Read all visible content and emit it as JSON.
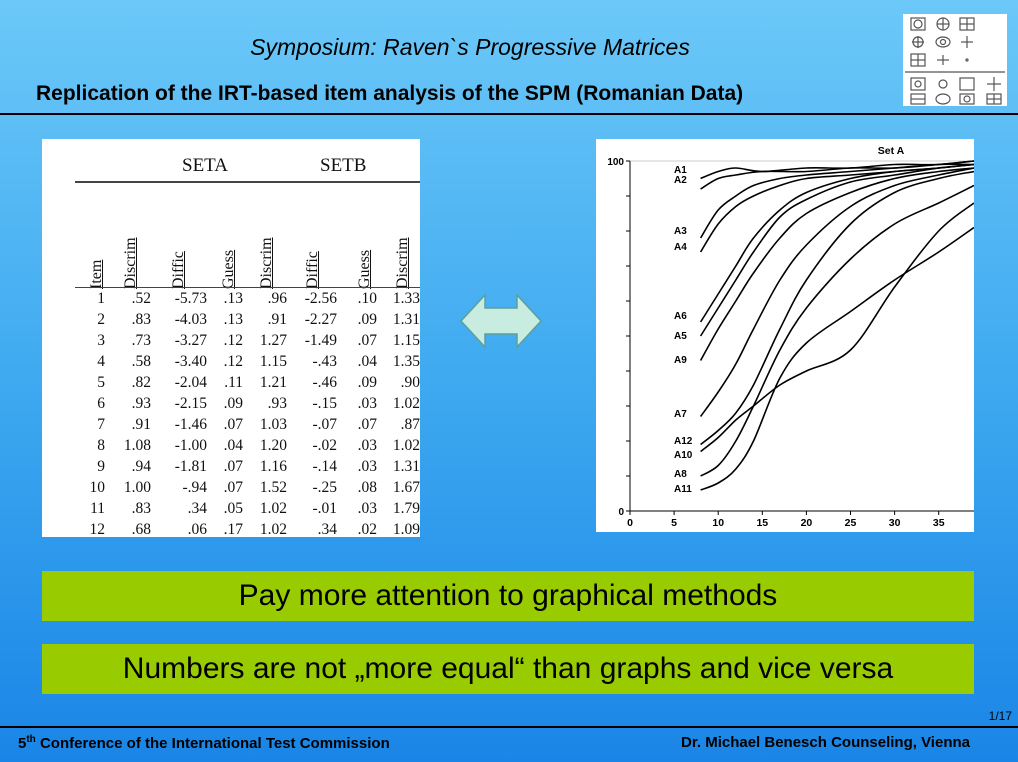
{
  "header": {
    "subtitle": "Symposium: Raven`s Progressive Matrices",
    "title": "Replication of the IRT-based item analysis of the SPM (Romanian Data)"
  },
  "table": {
    "set_labels": [
      "SETA",
      "SETB"
    ],
    "columns": [
      "Item",
      "Discrim",
      "Diffic",
      "Guess",
      "Discrim",
      "Diffic",
      "Guess",
      "Discrim"
    ],
    "rows": [
      [
        "1",
        ".52",
        "-5.73",
        ".13",
        ".96",
        "-2.56",
        ".10",
        "1.33"
      ],
      [
        "2",
        ".83",
        "-4.03",
        ".13",
        ".91",
        "-2.27",
        ".09",
        "1.31"
      ],
      [
        "3",
        ".73",
        "-3.27",
        ".12",
        "1.27",
        "-1.49",
        ".07",
        "1.15"
      ],
      [
        "4",
        ".58",
        "-3.40",
        ".12",
        "1.15",
        "-.43",
        ".04",
        "1.35"
      ],
      [
        "5",
        ".82",
        "-2.04",
        ".11",
        "1.21",
        "-.46",
        ".09",
        ".90"
      ],
      [
        "6",
        ".93",
        "-2.15",
        ".09",
        ".93",
        "-.15",
        ".03",
        "1.02"
      ],
      [
        "7",
        ".91",
        "-1.46",
        ".07",
        "1.03",
        "-.07",
        ".07",
        ".87"
      ],
      [
        "8",
        "1.08",
        "-1.00",
        ".04",
        "1.20",
        "-.02",
        ".03",
        "1.02"
      ],
      [
        "9",
        ".94",
        "-1.81",
        ".07",
        "1.16",
        "-.14",
        ".03",
        "1.31"
      ],
      [
        "10",
        "1.00",
        "-.94",
        ".07",
        "1.52",
        "-.25",
        ".08",
        "1.67"
      ],
      [
        "11",
        ".83",
        ".34",
        ".05",
        "1.02",
        "-.01",
        ".03",
        "1.79"
      ],
      [
        "12",
        ".68",
        ".06",
        ".17",
        "1.02",
        ".34",
        ".02",
        "1.09"
      ]
    ]
  },
  "chart_data": {
    "type": "line",
    "title": "Set A",
    "xlabel": "",
    "ylabel": "",
    "xlim": [
      0,
      39
    ],
    "ylim": [
      0,
      100
    ],
    "x_ticks": [
      "0",
      "5",
      "10",
      "15",
      "20",
      "25",
      "30",
      "35"
    ],
    "y_ticks": [
      "0",
      "100"
    ],
    "series": [
      {
        "name": "A1",
        "x": [
          8,
          10,
          12,
          15,
          20,
          25,
          30,
          35,
          39
        ],
        "values": [
          95,
          97,
          98,
          97,
          98,
          98,
          99,
          99,
          100
        ]
      },
      {
        "name": "A2",
        "x": [
          8,
          10,
          12,
          15,
          20,
          25,
          30,
          35,
          39
        ],
        "values": [
          92,
          95,
          96,
          97,
          97,
          98,
          98,
          99,
          100
        ]
      },
      {
        "name": "A3",
        "x": [
          8,
          10,
          12,
          14,
          17,
          20,
          25,
          30,
          35,
          39
        ],
        "values": [
          78,
          86,
          90,
          93,
          95,
          96,
          97,
          98,
          99,
          99
        ]
      },
      {
        "name": "A4",
        "x": [
          8,
          10,
          12,
          14,
          17,
          20,
          25,
          30,
          35,
          39
        ],
        "values": [
          74,
          82,
          87,
          90,
          93,
          95,
          96,
          97,
          98,
          99
        ]
      },
      {
        "name": "A6",
        "x": [
          8,
          10,
          12,
          14,
          17,
          20,
          25,
          30,
          35,
          39
        ],
        "values": [
          54,
          62,
          70,
          78,
          86,
          91,
          95,
          97,
          98,
          99
        ]
      },
      {
        "name": "A5",
        "x": [
          8,
          10,
          12,
          14,
          17,
          20,
          25,
          30,
          35,
          39
        ],
        "values": [
          50,
          58,
          66,
          74,
          84,
          89,
          94,
          96,
          98,
          99
        ]
      },
      {
        "name": "A9",
        "x": [
          8,
          10,
          12,
          14,
          17,
          20,
          25,
          30,
          35,
          39
        ],
        "values": [
          43,
          52,
          60,
          68,
          78,
          85,
          91,
          95,
          97,
          98
        ]
      },
      {
        "name": "A7",
        "x": [
          8,
          10,
          12,
          14,
          17,
          20,
          25,
          30,
          35,
          39
        ],
        "values": [
          27,
          34,
          42,
          52,
          66,
          76,
          87,
          93,
          96,
          98
        ]
      },
      {
        "name": "A12",
        "x": [
          8,
          10,
          12,
          14,
          17,
          20,
          25,
          30,
          35,
          39
        ],
        "values": [
          19,
          23,
          28,
          36,
          52,
          66,
          82,
          91,
          95,
          97
        ]
      },
      {
        "name": "A10",
        "x": [
          8,
          10,
          12,
          14,
          17,
          20,
          25,
          30,
          35,
          39
        ],
        "values": [
          17,
          21,
          26,
          30,
          36,
          40,
          46,
          64,
          80,
          88
        ]
      },
      {
        "name": "A8",
        "x": [
          8,
          10,
          12,
          14,
          17,
          20,
          25,
          30,
          35,
          39
        ],
        "values": [
          10,
          13,
          20,
          30,
          46,
          58,
          72,
          82,
          88,
          93
        ]
      },
      {
        "name": "A11",
        "x": [
          8,
          10,
          12,
          14,
          17,
          20,
          25,
          30,
          35,
          39
        ],
        "values": [
          6,
          8,
          12,
          20,
          38,
          48,
          57,
          66,
          74,
          81
        ]
      }
    ]
  },
  "banners": [
    "Pay more attention to graphical methods",
    "Numbers are not „more equal“ than graphs and vice versa"
  ],
  "footer": {
    "conf_num": "5",
    "conf_sup": "th",
    "conf_rest": " Conference of the International Test Commission",
    "right": "Dr. Michael Benesch Counseling, Vienna",
    "page": "1/17"
  },
  "colors": {
    "banner": "#99cc00",
    "curve": "#000000"
  },
  "icons": {
    "arrow": "double-arrow-icon",
    "logo": "matrix-symbols-logo"
  }
}
